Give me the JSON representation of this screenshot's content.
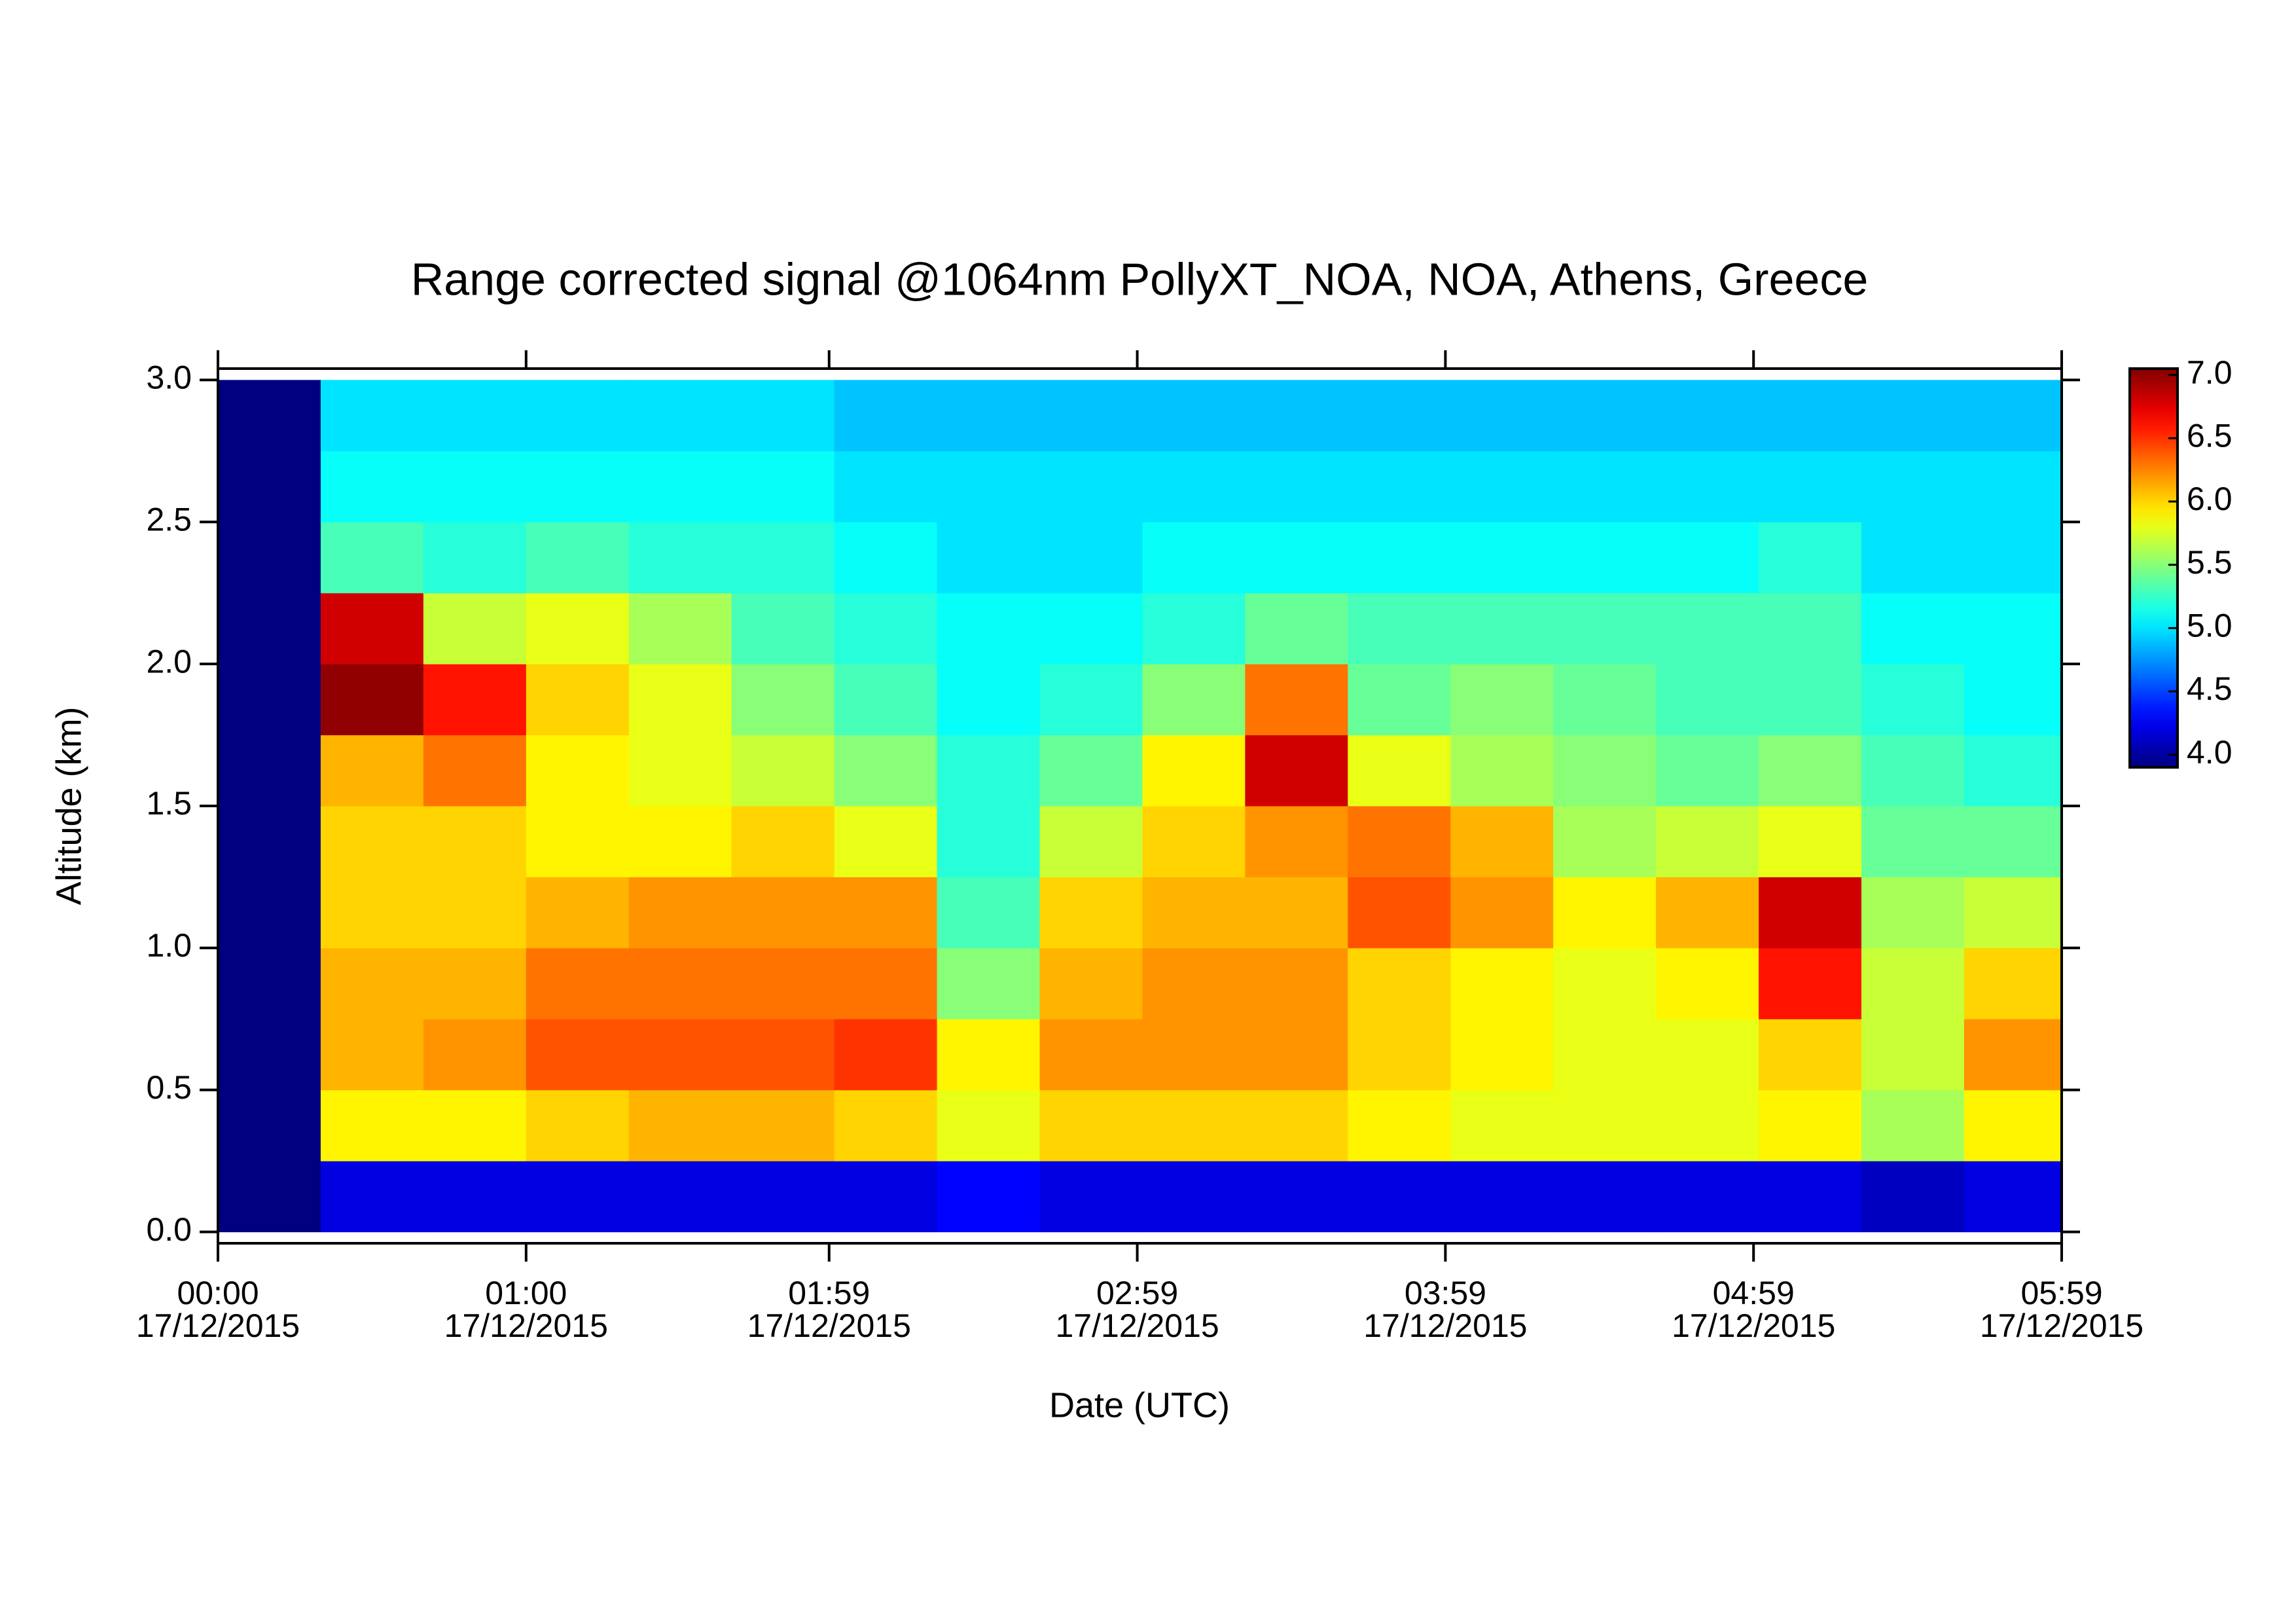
{
  "chart_data": {
    "type": "heatmap",
    "title": "Range corrected signal @1064nm  PollyXT_NOA, NOA, Athens, Greece",
    "x_label": "Date (UTC)",
    "y_label": "Altitude (km)",
    "xlim": [
      0,
      359
    ],
    "ylim": [
      -0.04,
      3.04
    ],
    "clim": [
      3.9,
      7.05
    ],
    "colormap": "jet",
    "xticks": [
      {
        "value": 0,
        "label": [
          "00:00",
          "17/12/2015"
        ]
      },
      {
        "value": 60,
        "label": [
          "01:00",
          "17/12/2015"
        ]
      },
      {
        "value": 119,
        "label": [
          "01:59",
          "17/12/2015"
        ]
      },
      {
        "value": 179,
        "label": [
          "02:59",
          "17/12/2015"
        ]
      },
      {
        "value": 239,
        "label": [
          "03:59",
          "17/12/2015"
        ]
      },
      {
        "value": 299,
        "label": [
          "04:59",
          "17/12/2015"
        ]
      },
      {
        "value": 359,
        "label": [
          "05:59",
          "17/12/2015"
        ]
      }
    ],
    "yticks": [
      {
        "value": 0,
        "label": "0.0"
      },
      {
        "value": 0.5,
        "label": "0.5"
      },
      {
        "value": 1,
        "label": "1.0"
      },
      {
        "value": 1.5,
        "label": "1.5"
      },
      {
        "value": 2,
        "label": "2.0"
      },
      {
        "value": 2.5,
        "label": "2.5"
      },
      {
        "value": 3,
        "label": "3.0"
      }
    ],
    "cticks": [
      {
        "value": 4,
        "label": "4.0"
      },
      {
        "value": 4.5,
        "label": "4.5"
      },
      {
        "value": 5,
        "label": "5.0"
      },
      {
        "value": 5.5,
        "label": "5.5"
      },
      {
        "value": 6,
        "label": "6.0"
      },
      {
        "value": 6.5,
        "label": "6.5"
      },
      {
        "value": 7,
        "label": "7.0"
      }
    ],
    "xbins": [
      0,
      20,
      40,
      60,
      80,
      100,
      120,
      140,
      160,
      180,
      200,
      220,
      240,
      260,
      280,
      300,
      320,
      340,
      359
    ],
    "ybins": [
      0,
      0.25,
      0.5,
      0.75,
      1,
      1.25,
      1.5,
      1.75,
      2,
      2.25,
      2.5,
      2.75,
      3
    ],
    "z": [
      [
        3.9,
        3.9,
        3.9,
        3.9,
        3.9,
        3.9,
        3.9,
        3.9,
        3.9,
        3.9,
        3.9,
        3.9
      ],
      [
        4.2,
        5.9,
        6.1,
        6.1,
        6.0,
        6.0,
        6.1,
        7.0,
        6.8,
        5.3,
        5.1,
        5.0
      ],
      [
        4.2,
        5.9,
        6.2,
        6.1,
        6.0,
        6.0,
        6.3,
        6.6,
        5.7,
        5.2,
        5.1,
        5.0
      ],
      [
        4.2,
        6.0,
        6.4,
        6.3,
        6.1,
        5.9,
        5.9,
        6.0,
        5.8,
        5.3,
        5.1,
        5.0
      ],
      [
        4.2,
        6.1,
        6.4,
        6.3,
        6.2,
        5.9,
        5.8,
        5.8,
        5.6,
        5.2,
        5.1,
        5.0
      ],
      [
        4.2,
        6.1,
        6.4,
        6.3,
        6.2,
        6.0,
        5.7,
        5.5,
        5.3,
        5.2,
        5.1,
        5.0
      ],
      [
        4.2,
        6.0,
        6.5,
        6.3,
        6.2,
        5.8,
        5.5,
        5.3,
        5.2,
        5.1,
        5.0,
        4.9
      ],
      [
        4.3,
        5.8,
        5.9,
        5.5,
        5.3,
        5.2,
        5.2,
        5.1,
        5.1,
        5.0,
        5.0,
        4.9
      ],
      [
        4.2,
        6.0,
        6.2,
        6.1,
        6.0,
        5.7,
        5.4,
        5.2,
        5.1,
        5.0,
        5.0,
        4.9
      ],
      [
        4.2,
        6.0,
        6.2,
        6.2,
        6.1,
        6.0,
        5.9,
        5.5,
        5.2,
        5.1,
        5.0,
        4.9
      ],
      [
        4.2,
        6.0,
        6.2,
        6.2,
        6.1,
        6.2,
        6.8,
        6.3,
        5.4,
        5.1,
        5.0,
        4.9
      ],
      [
        4.2,
        5.9,
        6.0,
        6.0,
        6.4,
        6.3,
        5.8,
        5.4,
        5.3,
        5.1,
        5.0,
        4.9
      ],
      [
        4.2,
        5.8,
        5.9,
        5.9,
        6.2,
        6.1,
        5.6,
        5.5,
        5.3,
        5.1,
        5.0,
        4.9
      ],
      [
        4.2,
        5.8,
        5.8,
        5.8,
        5.9,
        5.6,
        5.5,
        5.4,
        5.3,
        5.1,
        5.0,
        4.9
      ],
      [
        4.2,
        5.8,
        5.8,
        5.9,
        6.1,
        5.7,
        5.4,
        5.3,
        5.3,
        5.1,
        5.0,
        4.9
      ],
      [
        4.2,
        5.9,
        6.0,
        6.6,
        6.8,
        5.8,
        5.5,
        5.3,
        5.3,
        5.2,
        5.0,
        4.9
      ],
      [
        4.1,
        5.6,
        5.7,
        5.7,
        5.6,
        5.4,
        5.3,
        5.2,
        5.1,
        5.0,
        5.0,
        4.9
      ],
      [
        4.2,
        5.9,
        6.2,
        6.0,
        5.7,
        5.4,
        5.2,
        5.1,
        5.1,
        5.0,
        5.0,
        4.9
      ]
    ]
  }
}
